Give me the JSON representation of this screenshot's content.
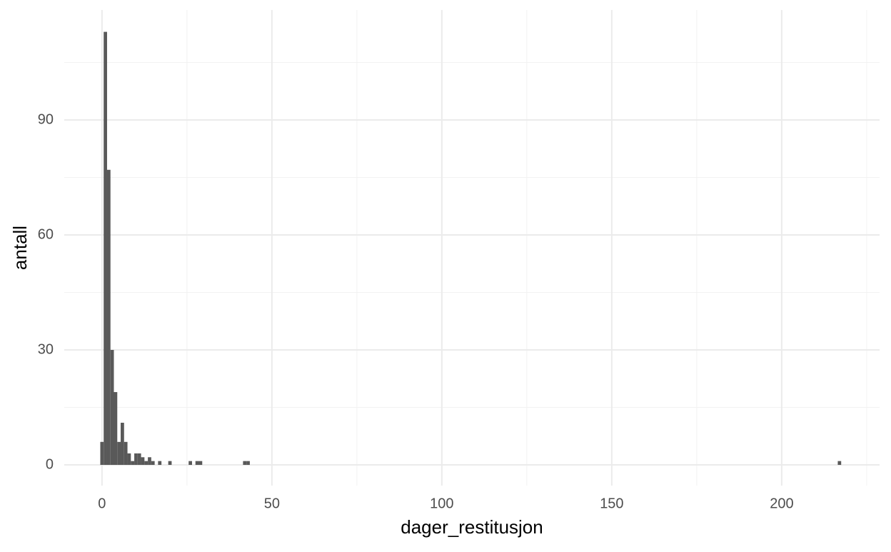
{
  "chart_data": {
    "type": "histogram",
    "x_label": "dager_restitusjon",
    "y_label": "antall",
    "bins": [
      -0.5,
      0.5,
      1.5,
      2.5,
      3.5,
      4.5,
      5.5,
      6.5,
      7.5,
      8.5,
      9.5,
      10.5,
      11.5,
      12.5,
      13.5,
      14.5,
      15.5,
      16.5,
      17.5,
      19.5,
      20.5,
      25.5,
      26.5,
      27.5,
      28.5,
      29.5,
      41.5,
      42.5,
      43.5,
      216.5,
      217.5
    ],
    "values": [
      6,
      113,
      77,
      30,
      19,
      6,
      11,
      6,
      3,
      1,
      3,
      3,
      2,
      1,
      2,
      1,
      0,
      1,
      0,
      1,
      0,
      1,
      0,
      1,
      1,
      0,
      1,
      1,
      0,
      1
    ],
    "color": "#595959",
    "xlim": [
      -11.1,
      228.8
    ],
    "ylim": [
      -5.4,
      118.7
    ],
    "xticks": [
      0,
      50,
      100,
      150,
      200
    ],
    "yticks": [
      0,
      30,
      60,
      90
    ],
    "grid": true
  }
}
